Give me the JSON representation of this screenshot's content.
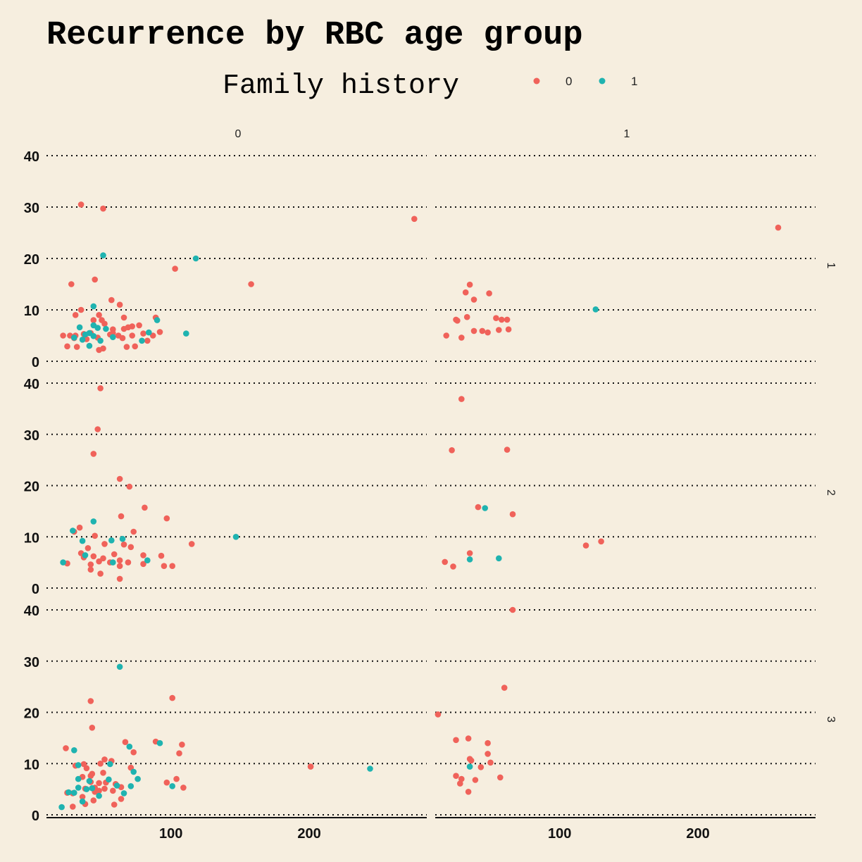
{
  "chart_data": {
    "type": "scatter",
    "title": "Recurrence by RBC age group",
    "xlabel": "",
    "ylabel": "",
    "legend": {
      "title": "Family history",
      "placement": "top",
      "entries": [
        {
          "label": "0",
          "color": "#f0625a"
        },
        {
          "label": "1",
          "color": "#1fb3b0"
        }
      ]
    },
    "facet_columns": [
      "0",
      "1"
    ],
    "facet_rows": [
      "1",
      "2",
      "3"
    ],
    "xlim": [
      10,
      285
    ],
    "ylim": [
      0,
      42
    ],
    "x_ticks": [
      100,
      200
    ],
    "x_tick_labels": [
      "100",
      "200"
    ],
    "y_ticks": [
      0,
      10,
      20,
      30,
      40
    ],
    "y_tick_labels": [
      "0",
      "10",
      "20",
      "30",
      "40"
    ],
    "grid": "horizontal dotted",
    "panels": [
      {
        "column": "0",
        "row": "1",
        "series": [
          {
            "group": "0",
            "points": [
              [
                35,
                30.5
              ],
              [
                51,
                29.7
              ],
              [
                276,
                27.7
              ],
              [
                103,
                18
              ],
              [
                158,
                15
              ],
              [
                28,
                15
              ],
              [
                45,
                15.9
              ],
              [
                57,
                11.9
              ],
              [
                63,
                11
              ],
              [
                35,
                10
              ],
              [
                44,
                8
              ],
              [
                50,
                8
              ],
              [
                52,
                7.3
              ],
              [
                31,
                9
              ],
              [
                48,
                9
              ],
              [
                66,
                8.5
              ],
              [
                89,
                8.5
              ],
              [
                58,
                6.2
              ],
              [
                66,
                6.3
              ],
              [
                69,
                6.6
              ],
              [
                72,
                6.8
              ],
              [
                77,
                7
              ],
              [
                42,
                5.5
              ],
              [
                58,
                5.5
              ],
              [
                27,
                5
              ],
              [
                22,
                5
              ],
              [
                31,
                5
              ],
              [
                37,
                5.3
              ],
              [
                56,
                5.2
              ],
              [
                62,
                5
              ],
              [
                72,
                5
              ],
              [
                80,
                5.4
              ],
              [
                92,
                5.7
              ],
              [
                30,
                4.5
              ],
              [
                39,
                4.3
              ],
              [
                47,
                4.6
              ],
              [
                65,
                4.5
              ],
              [
                87,
                5
              ],
              [
                83,
                4
              ],
              [
                25,
                2.9
              ],
              [
                32,
                2.8
              ],
              [
                48,
                2.2
              ],
              [
                51,
                2.5
              ],
              [
                68,
                2.8
              ],
              [
                74,
                2.9
              ]
            ]
          },
          {
            "group": "1",
            "points": [
              [
                51,
                20.6
              ],
              [
                118,
                20
              ],
              [
                44,
                10.7
              ],
              [
                34,
                6.6
              ],
              [
                44,
                7
              ],
              [
                47,
                6.5
              ],
              [
                53,
                6.3
              ],
              [
                84,
                5.6
              ],
              [
                111,
                5.4
              ],
              [
                38,
                5.2
              ],
              [
                41,
                5.5
              ],
              [
                44,
                4.9
              ],
              [
                30,
                4.6
              ],
              [
                36,
                4.2
              ],
              [
                49,
                4
              ],
              [
                58,
                4.7
              ],
              [
                79,
                4
              ],
              [
                90,
                8
              ],
              [
                41,
                3
              ]
            ]
          }
        ]
      },
      {
        "column": "0",
        "row": "2",
        "series": [
          {
            "group": "0",
            "points": [
              [
                49,
                39
              ],
              [
                47,
                31
              ],
              [
                44,
                26.2
              ],
              [
                63,
                21.3
              ],
              [
                70,
                19.8
              ],
              [
                81,
                15.7
              ],
              [
                97,
                13.6
              ],
              [
                64,
                14
              ],
              [
                34,
                11.8
              ],
              [
                30,
                11
              ],
              [
                73,
                11
              ],
              [
                45,
                10.2
              ],
              [
                115,
                8.6
              ],
              [
                52,
                8.6
              ],
              [
                66,
                8.5
              ],
              [
                71,
                8
              ],
              [
                93,
                6.3
              ],
              [
                80,
                6.4
              ],
              [
                40,
                7.8
              ],
              [
                35,
                6.8
              ],
              [
                44,
                6.2
              ],
              [
                51,
                5.8
              ],
              [
                59,
                6.6
              ],
              [
                63,
                5.4
              ],
              [
                69,
                5
              ],
              [
                25,
                4.8
              ],
              [
                42,
                4.6
              ],
              [
                48,
                5.2
              ],
              [
                56,
                5
              ],
              [
                63,
                4.3
              ],
              [
                80,
                4.7
              ],
              [
                95,
                4.3
              ],
              [
                101,
                4.3
              ],
              [
                42,
                3.6
              ],
              [
                49,
                2.8
              ],
              [
                63,
                1.8
              ],
              [
                37,
                6
              ]
            ]
          },
          {
            "group": "1",
            "points": [
              [
                147,
                10
              ],
              [
                44,
                13
              ],
              [
                29,
                11.2
              ],
              [
                36,
                9.2
              ],
              [
                57,
                9.3
              ],
              [
                65,
                9.6
              ],
              [
                22,
                5
              ],
              [
                38,
                6.4
              ],
              [
                58,
                5
              ],
              [
                83,
                5.4
              ]
            ]
          }
        ]
      },
      {
        "column": "0",
        "row": "3",
        "series": [
          {
            "group": "0",
            "points": [
              [
                42,
                22.2
              ],
              [
                101,
                22.8
              ],
              [
                43,
                17
              ],
              [
                67,
                14.2
              ],
              [
                89,
                14.3
              ],
              [
                108,
                13.7
              ],
              [
                24,
                13
              ],
              [
                73,
                12.2
              ],
              [
                106,
                12
              ],
              [
                52,
                10.8
              ],
              [
                57,
                10.5
              ],
              [
                49,
                10
              ],
              [
                37,
                9.9
              ],
              [
                31,
                9.6
              ],
              [
                39,
                9.1
              ],
              [
                71,
                9.2
              ],
              [
                201,
                9.4
              ],
              [
                43,
                8
              ],
              [
                36,
                7.4
              ],
              [
                42,
                7.6
              ],
              [
                51,
                8.2
              ],
              [
                104,
                7
              ],
              [
                97,
                6.3
              ],
              [
                42,
                6.4
              ],
              [
                48,
                6.2
              ],
              [
                53,
                6.3
              ],
              [
                60,
                6
              ],
              [
                64,
                5.4
              ],
              [
                52,
                5.1
              ],
              [
                109,
                5.3
              ],
              [
                38,
                5.1
              ],
              [
                45,
                5.3
              ],
              [
                58,
                4.7
              ],
              [
                25,
                4.3
              ],
              [
                29,
                4.2
              ],
              [
                45,
                4.5
              ],
              [
                48,
                4.7
              ],
              [
                36,
                3.5
              ],
              [
                44,
                2.8
              ],
              [
                59,
                2
              ],
              [
                64,
                3.1
              ],
              [
                38,
                2.1
              ],
              [
                29,
                1.6
              ]
            ]
          },
          {
            "group": "1",
            "points": [
              [
                63,
                28.9
              ],
              [
                30,
                12.6
              ],
              [
                70,
                13.3
              ],
              [
                33,
                9.7
              ],
              [
                56,
                9.9
              ],
              [
                92,
                14
              ],
              [
                244,
                9
              ],
              [
                76,
                7
              ],
              [
                73,
                8.4
              ],
              [
                33,
                7
              ],
              [
                41,
                6.6
              ],
              [
                39,
                5
              ],
              [
                43,
                5.2
              ],
              [
                55,
                6.9
              ],
              [
                61,
                5.7
              ],
              [
                71,
                5.6
              ],
              [
                101,
                5.6
              ],
              [
                26,
                4.4
              ],
              [
                33,
                5.3
              ],
              [
                30,
                4.3
              ],
              [
                48,
                3.7
              ],
              [
                66,
                4.2
              ],
              [
                36,
                2.6
              ],
              [
                21,
                1.5
              ]
            ]
          }
        ]
      },
      {
        "column": "1",
        "row": "1",
        "series": [
          {
            "group": "0",
            "points": [
              [
                258,
                26
              ],
              [
                35,
                14.9
              ],
              [
                32,
                13.4
              ],
              [
                49,
                13.2
              ],
              [
                38,
                12
              ],
              [
                33,
                8.6
              ],
              [
                25,
                8.1
              ],
              [
                26,
                7.9
              ],
              [
                54,
                8.4
              ],
              [
                58,
                8.1
              ],
              [
                62,
                8.1
              ],
              [
                18,
                5
              ],
              [
                38,
                5.9
              ],
              [
                44,
                5.9
              ],
              [
                48,
                5.6
              ],
              [
                56,
                6.1
              ],
              [
                63,
                6.2
              ],
              [
                29,
                4.6
              ]
            ]
          },
          {
            "group": "1",
            "points": [
              [
                126,
                10.1
              ]
            ]
          }
        ]
      },
      {
        "column": "1",
        "row": "2",
        "series": [
          {
            "group": "0",
            "points": [
              [
                29,
                36.9
              ],
              [
                22,
                26.9
              ],
              [
                62,
                27
              ],
              [
                41,
                15.8
              ],
              [
                66,
                14.4
              ],
              [
                119,
                8.3
              ],
              [
                130,
                9.1
              ],
              [
                35,
                6.8
              ],
              [
                17,
                5.1
              ],
              [
                23,
                4.2
              ]
            ]
          },
          {
            "group": "1",
            "points": [
              [
                46,
                15.6
              ],
              [
                35,
                5.6
              ],
              [
                56,
                5.8
              ]
            ]
          }
        ]
      },
      {
        "column": "1",
        "row": "3",
        "series": [
          {
            "group": "0",
            "points": [
              [
                66,
                40
              ],
              [
                60,
                24.8
              ],
              [
                12,
                19.6
              ],
              [
                25,
                14.6
              ],
              [
                34,
                14.9
              ],
              [
                48,
                14
              ],
              [
                48,
                11.9
              ],
              [
                35,
                10.9
              ],
              [
                36,
                10.6
              ],
              [
                50,
                10.2
              ],
              [
                43,
                9.3
              ],
              [
                25,
                7.6
              ],
              [
                29,
                7
              ],
              [
                39,
                6.8
              ],
              [
                57,
                7.3
              ],
              [
                28,
                6.1
              ],
              [
                34,
                4.5
              ]
            ]
          },
          {
            "group": "1",
            "points": [
              [
                35,
                9.4
              ]
            ]
          }
        ]
      }
    ]
  }
}
